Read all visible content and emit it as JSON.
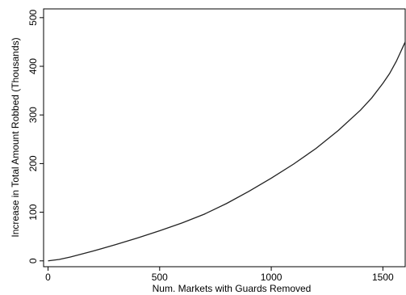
{
  "chart_data": {
    "type": "line",
    "title": "",
    "xlabel": "Num. Markets with Guards Removed",
    "ylabel": "Increase in Total Amount Robbed (Thousands)",
    "xlim": [
      -20,
      1600
    ],
    "ylim": [
      -12,
      518
    ],
    "xticks": [
      0,
      500,
      1000,
      1500
    ],
    "yticks": [
      0,
      100,
      200,
      300,
      400,
      500
    ],
    "grid": false,
    "legend": "none",
    "series": [
      {
        "x": [
          0,
          50,
          100,
          200,
          300,
          400,
          500,
          600,
          700,
          800,
          900,
          1000,
          1100,
          1200,
          1300,
          1400,
          1450,
          1500,
          1530,
          1560,
          1580,
          1590,
          1600
        ],
        "y": [
          0,
          3,
          8,
          20,
          33,
          47,
          62,
          78,
          96,
          118,
          143,
          170,
          199,
          231,
          268,
          310,
          335,
          365,
          385,
          410,
          430,
          440,
          450
        ]
      }
    ]
  }
}
